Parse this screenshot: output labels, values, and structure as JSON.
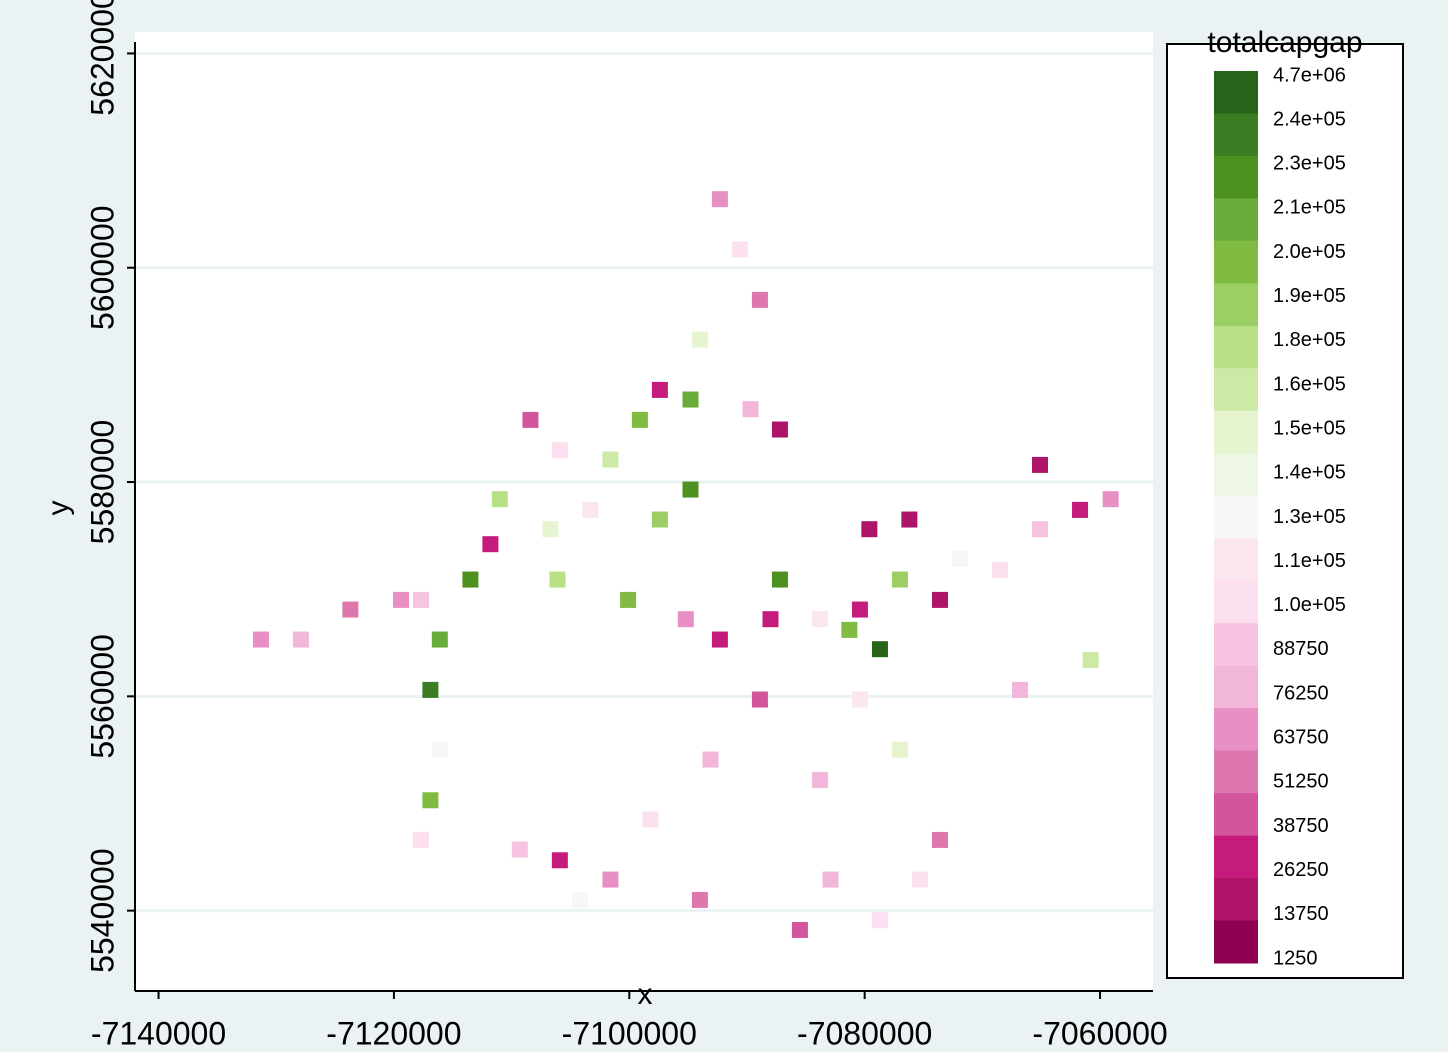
{
  "chart_data": {
    "type": "raster-map",
    "x_label": "x",
    "y_label": "y",
    "xlim": [
      -7142000,
      -7055500
    ],
    "ylim": [
      5532500,
      5622000
    ],
    "xticks": [
      -7140000,
      -7120000,
      -7100000,
      -7080000,
      -7060000
    ],
    "yticks": [
      5540000,
      5560000,
      5580000,
      5600000,
      5620000
    ],
    "grid": true,
    "x": [
      -7092300,
      -7090600,
      -7088900,
      -7094000,
      -7097400,
      -7094800,
      -7089700,
      -7087200,
      -7099100,
      -7101600,
      -7105900,
      -7108400,
      -7111000,
      -7106700,
      -7103300,
      -7097400,
      -7094800,
      -7111800,
      -7113500,
      -7117700,
      -7119400,
      -7123700,
      -7127900,
      -7131300,
      -7116100,
      -7116900,
      -7116100,
      -7116900,
      -7117700,
      -7106100,
      -7100100,
      -7095200,
      -7092300,
      -7088000,
      -7087200,
      -7083800,
      -7081300,
      -7078700,
      -7080400,
      -7079600,
      -7076200,
      -7077000,
      -7073600,
      -7071900,
      -7068500,
      -7065100,
      -7061700,
      -7059100,
      -7065100,
      -7066800,
      -7060800,
      -7088900,
      -7093100,
      -7098200,
      -7101600,
      -7105900,
      -7109300,
      -7094000,
      -7083800,
      -7082900,
      -7078700,
      -7075300,
      -7073600,
      -7077000,
      -7085500,
      -7080400,
      -7104200
    ],
    "y": [
      5606400,
      5601700,
      5597000,
      5593300,
      5588600,
      5587700,
      5586800,
      5584900,
      5585800,
      5582100,
      5583000,
      5585800,
      5578400,
      5575600,
      5577400,
      5576500,
      5579300,
      5574200,
      5570900,
      5569000,
      5569000,
      5568100,
      5565300,
      5565300,
      5565300,
      5560600,
      5555000,
      5550300,
      5546600,
      5570900,
      5569000,
      5567200,
      5565300,
      5567200,
      5570900,
      5567200,
      5566200,
      5564400,
      5568100,
      5575600,
      5576500,
      5570900,
      5569000,
      5572800,
      5571800,
      5575600,
      5577400,
      5578400,
      5581600,
      5560600,
      5563400,
      5559700,
      5554100,
      5548500,
      5542900,
      5544700,
      5545700,
      5541000,
      5552200,
      5542900,
      5539100,
      5542900,
      5546600,
      5555000,
      5538200,
      5559700,
      5541000
    ],
    "values": [
      60000,
      90000,
      40000,
      150000,
      20000,
      210000,
      70000,
      10000,
      200000,
      160000,
      100000,
      30000,
      180000,
      150000,
      110000,
      190000,
      220000,
      15000,
      230000,
      80000,
      60000,
      45000,
      70000,
      55000,
      210000,
      240000,
      120000,
      200000,
      90000,
      170000,
      200000,
      60000,
      20000,
      15000,
      230000,
      110000,
      200000,
      300000,
      20000,
      5000,
      10000,
      190000,
      10000,
      120000,
      100000,
      80000,
      20000,
      60000,
      10000,
      70000,
      160000,
      30000,
      70000,
      90000,
      60000,
      20000,
      80000,
      50000,
      70000,
      65000,
      100000,
      90000,
      40000,
      150000,
      30000,
      110000,
      120000
    ],
    "legend": {
      "title": "totalcapgap",
      "levels": [
        {
          "value": 4700000,
          "label": "4.7e+06"
        },
        {
          "value": 240000,
          "label": "2.4e+05"
        },
        {
          "value": 230000,
          "label": "2.3e+05"
        },
        {
          "value": 210000,
          "label": "2.1e+05"
        },
        {
          "value": 200000,
          "label": "2.0e+05"
        },
        {
          "value": 190000,
          "label": "1.9e+05"
        },
        {
          "value": 180000,
          "label": "1.8e+05"
        },
        {
          "value": 160000,
          "label": "1.6e+05"
        },
        {
          "value": 150000,
          "label": "1.5e+05"
        },
        {
          "value": 140000,
          "label": "1.4e+05"
        },
        {
          "value": 130000,
          "label": "1.3e+05"
        },
        {
          "value": 110000,
          "label": "1.1e+05"
        },
        {
          "value": 100000,
          "label": "1.0e+05"
        },
        88750,
        76250,
        63750,
        51250,
        38750,
        26250,
        13750,
        1250
      ],
      "colors": [
        "#276419",
        "#3a7d23",
        "#4d9221",
        "#6aac3a",
        "#7fbc41",
        "#9ccf63",
        "#b8e186",
        "#cce9a6",
        "#e6f5d0",
        "#eef6e4",
        "#f7f7f7",
        "#fbe6ef",
        "#fde0ef",
        "#f6c4e0",
        "#f1b6da",
        "#e890c3",
        "#de77ae",
        "#d3559c",
        "#c51b7d",
        "#ae1468",
        "#8e0152"
      ]
    }
  }
}
